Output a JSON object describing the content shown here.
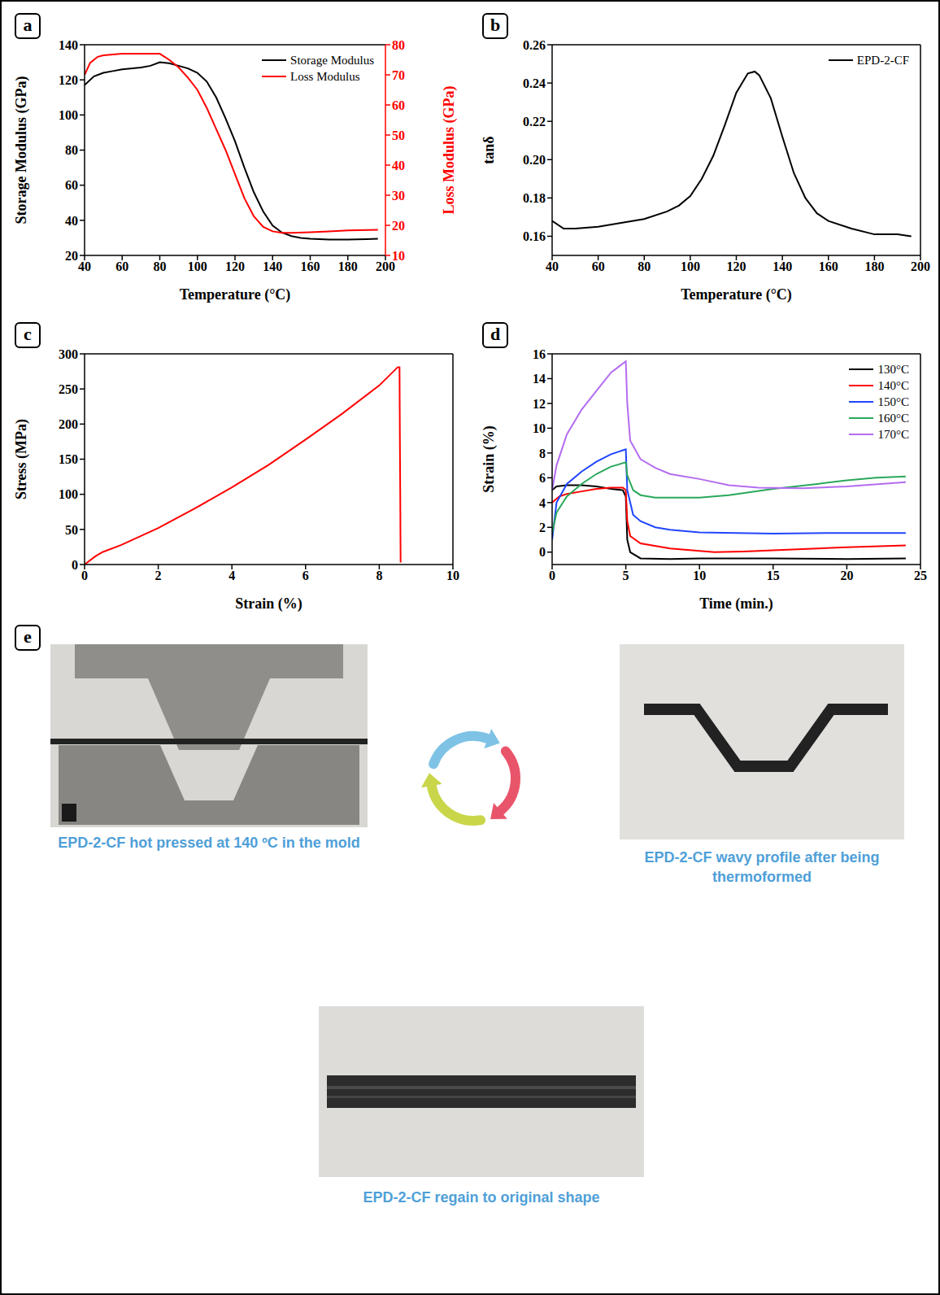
{
  "chart_data": [
    {
      "panel_label": "a",
      "type": "line",
      "x_label": "Temperature (°C)",
      "y_label": "Storage Modulus (GPa)",
      "y2_label": "Loss Modulus (GPa)",
      "xlim": [
        40,
        200
      ],
      "xticks": [
        40,
        60,
        80,
        100,
        120,
        140,
        160,
        180,
        200
      ],
      "ylim": [
        20,
        140
      ],
      "yticks": [
        20,
        40,
        60,
        80,
        100,
        120,
        140
      ],
      "y2lim": [
        10,
        80
      ],
      "y2ticks": [
        10,
        20,
        30,
        40,
        50,
        60,
        70,
        80
      ],
      "legend": "upper right",
      "series": [
        {
          "name": "Storage Modulus",
          "color": "#000000",
          "x": [
            40,
            45,
            50,
            55,
            60,
            70,
            75,
            80,
            85,
            90,
            95,
            100,
            105,
            110,
            115,
            120,
            125,
            130,
            135,
            140,
            145,
            150,
            155,
            160,
            170,
            180,
            190,
            196
          ],
          "values": [
            117,
            122,
            124,
            125,
            126,
            127,
            128,
            130,
            129.5,
            128,
            126.5,
            124,
            119,
            110,
            98,
            85,
            70,
            56,
            45,
            37,
            33,
            31,
            30,
            29.5,
            29,
            29,
            29.3,
            29.5
          ]
        },
        {
          "name": "Loss Modulus",
          "color": "#ff0000",
          "axis": "y2",
          "x": [
            40,
            43,
            47,
            50,
            60,
            70,
            80,
            85,
            90,
            95,
            100,
            105,
            110,
            115,
            120,
            125,
            130,
            135,
            140,
            145,
            150,
            160,
            170,
            180,
            196
          ],
          "values": [
            70,
            74,
            76,
            76.5,
            77,
            77,
            77,
            75,
            72.5,
            69,
            65,
            59,
            52,
            45,
            37,
            29,
            23,
            19.5,
            18,
            17.5,
            17.5,
            17.7,
            18,
            18.3,
            18.5
          ]
        }
      ]
    },
    {
      "panel_label": "b",
      "type": "line",
      "x_label": "Temperature (°C)",
      "y_label": "tanδ",
      "xlim": [
        40,
        200
      ],
      "xticks": [
        40,
        60,
        80,
        100,
        120,
        140,
        160,
        180,
        200
      ],
      "ylim": [
        0.15,
        0.26
      ],
      "yticks": [
        0.16,
        0.18,
        {
          "value": 0.2,
          "label": "0.20"
        },
        0.22,
        0.24,
        0.26
      ],
      "legend": "upper right",
      "series": [
        {
          "name": "EPD-2-CF",
          "color": "#000000",
          "x": [
            40,
            45,
            50,
            60,
            70,
            80,
            90,
            95,
            100,
            105,
            110,
            115,
            120,
            125,
            128,
            130,
            135,
            140,
            145,
            150,
            155,
            160,
            170,
            180,
            190,
            196
          ],
          "values": [
            0.168,
            0.164,
            0.164,
            0.165,
            0.167,
            0.169,
            0.173,
            0.176,
            0.181,
            0.19,
            0.202,
            0.218,
            0.235,
            0.245,
            0.246,
            0.244,
            0.232,
            0.212,
            0.193,
            0.18,
            0.172,
            0.168,
            0.164,
            0.161,
            0.161,
            0.16
          ]
        }
      ]
    },
    {
      "panel_label": "c",
      "type": "line",
      "x_label": "Strain (%)",
      "y_label": "Stress (MPa)",
      "xlim": [
        0,
        10
      ],
      "xticks": [
        0,
        2,
        4,
        6,
        8,
        10
      ],
      "ylim": [
        0,
        300
      ],
      "yticks": [
        0,
        50,
        100,
        150,
        200,
        250,
        300
      ],
      "color": "#ff0000",
      "x": [
        0,
        0.3,
        0.5,
        1,
        2,
        3,
        4,
        5,
        6,
        7,
        8,
        8.5,
        8.55,
        8.56,
        8.57,
        8.58
      ],
      "values": [
        0,
        12,
        18,
        28,
        52,
        80,
        110,
        142,
        178,
        215,
        255,
        281,
        281,
        180,
        100,
        3
      ]
    },
    {
      "panel_label": "d",
      "type": "line",
      "x_label": "Time (min.)",
      "y_label": "Strain (%)",
      "xlim": [
        0,
        25
      ],
      "xticks": [
        0,
        5,
        10,
        15,
        20,
        25
      ],
      "ylim": [
        -1,
        16
      ],
      "yticks": [
        0,
        2,
        4,
        6,
        8,
        10,
        12,
        14,
        16
      ],
      "legend": "upper right",
      "series": [
        {
          "name": "130°C",
          "color": "#000000",
          "x": [
            0,
            0.3,
            1,
            2,
            3,
            4,
            4.8,
            5,
            5.1,
            5.3,
            6,
            8,
            10,
            15,
            20,
            24
          ],
          "values": [
            5,
            5.3,
            5.4,
            5.4,
            5.3,
            5.1,
            5,
            4.5,
            1,
            0,
            -0.5,
            -0.55,
            -0.5,
            -0.5,
            -0.55,
            -0.5
          ]
        },
        {
          "name": "140°C",
          "color": "#ff0000",
          "x": [
            0,
            0.5,
            1,
            2,
            3,
            4,
            4.8,
            5,
            5.1,
            5.3,
            6,
            8,
            10,
            11,
            13,
            16,
            20,
            24
          ],
          "values": [
            4,
            4.5,
            4.7,
            4.9,
            5.1,
            5.2,
            5.2,
            5,
            2.5,
            1.3,
            0.7,
            0.3,
            0.1,
            0,
            0.05,
            0.2,
            0.4,
            0.55
          ]
        },
        {
          "name": "150°C",
          "color": "#1f45ff",
          "x": [
            0,
            0.3,
            1,
            2,
            3,
            4,
            5,
            5.1,
            5.5,
            6,
            7,
            8,
            10,
            15,
            20,
            24
          ],
          "values": [
            1,
            4,
            5.5,
            6.5,
            7.3,
            7.9,
            8.3,
            5,
            3,
            2.5,
            2,
            1.8,
            1.6,
            1.5,
            1.55,
            1.55
          ]
        },
        {
          "name": "160°C",
          "color": "#2aa85a",
          "x": [
            0,
            0.3,
            1,
            2,
            3,
            4,
            5,
            5.1,
            5.5,
            6,
            7,
            10,
            12,
            15,
            18,
            20,
            22,
            24
          ],
          "values": [
            1.5,
            3.2,
            4.5,
            5.5,
            6.3,
            6.9,
            7.25,
            6.2,
            5,
            4.6,
            4.4,
            4.4,
            4.6,
            5.1,
            5.5,
            5.8,
            6,
            6.1
          ]
        },
        {
          "name": "170°C",
          "color": "#b36cf0",
          "x": [
            0,
            0.3,
            1,
            2,
            3,
            4,
            5,
            5.1,
            5.3,
            6,
            7,
            8,
            10,
            12,
            14,
            17,
            20,
            24
          ],
          "values": [
            5,
            7,
            9.5,
            11.5,
            13,
            14.5,
            15.4,
            12,
            9,
            7.5,
            6.8,
            6.3,
            5.9,
            5.4,
            5.2,
            5.15,
            5.3,
            5.65
          ]
        }
      ]
    }
  ],
  "panel_e": {
    "panel_label": "e",
    "images": [
      {
        "caption": "EPD-2-CF hot pressed at 140 ºC in the mold"
      },
      {
        "caption": "EPD-2-CF wavy profile after being thermoformed"
      },
      {
        "caption": "EPD-2-CF regain to original shape"
      }
    ]
  }
}
